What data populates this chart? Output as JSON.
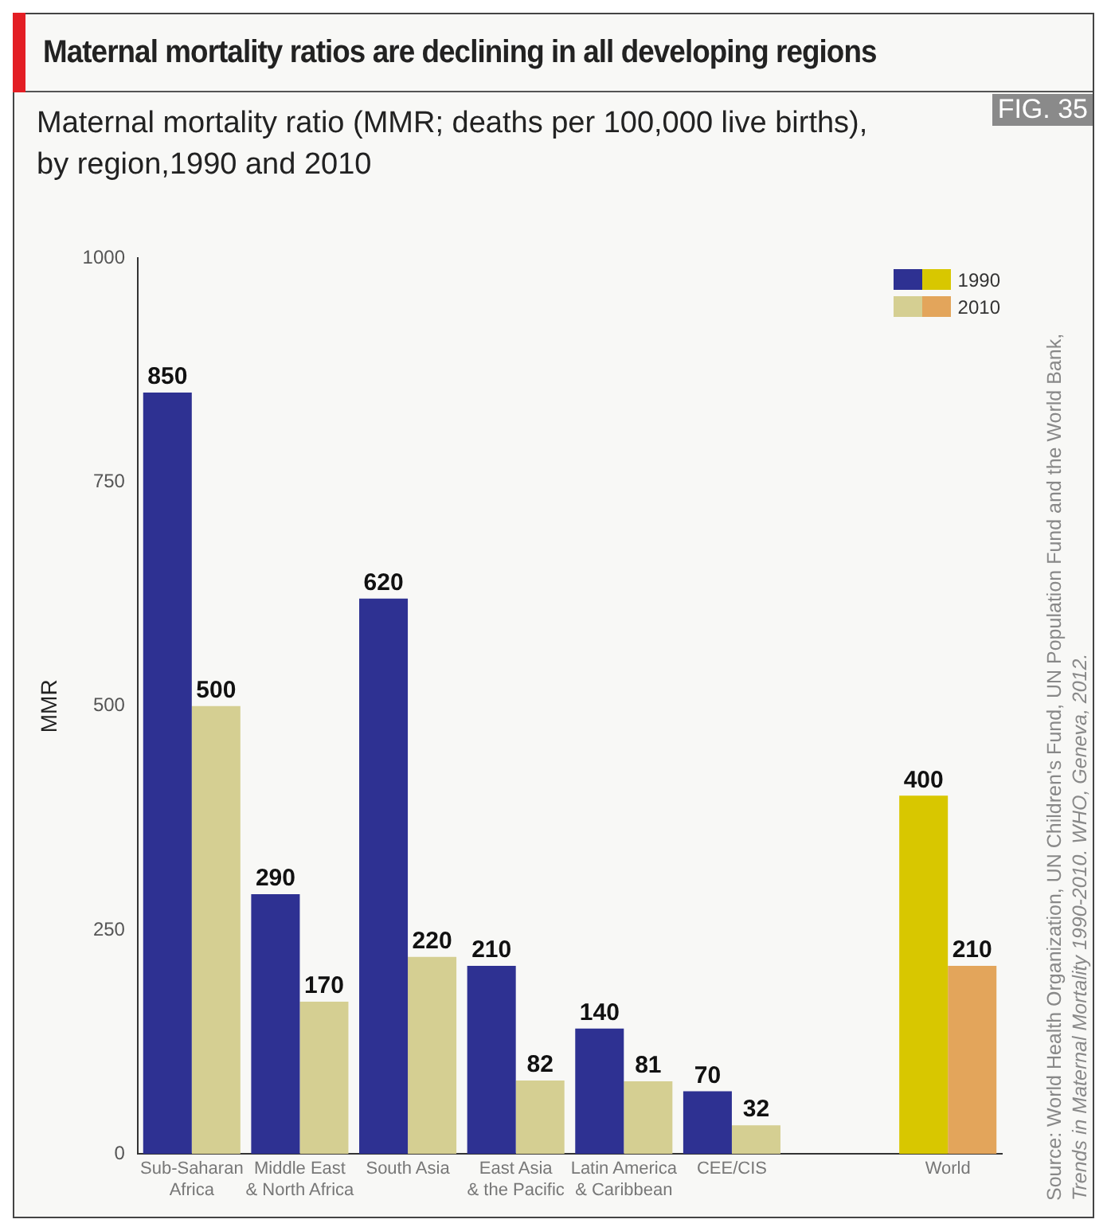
{
  "chart_data": {
    "type": "bar",
    "title": "Maternal mortality ratios are declining in all developing regions",
    "subtitle": "Maternal mortality ratio (MMR; deaths per 100,000 live births), by region,1990 and 2010",
    "ylabel": "MMR",
    "categories": [
      "Sub-Saharan\nAfrica",
      "Middle East\n& North Africa",
      "South Asia",
      "East Asia\n& the Pacific",
      "Latin America\n& Caribbean",
      "CEE/CIS",
      null,
      "World"
    ],
    "series": [
      {
        "name": "1990",
        "colors": [
          "#2e3192",
          "#2e3192",
          "#2e3192",
          "#2e3192",
          "#2e3192",
          "#2e3192",
          "#2e3192",
          "#d8c700"
        ],
        "values": [
          850,
          290,
          620,
          210,
          140,
          70,
          null,
          400
        ]
      },
      {
        "name": "2010",
        "colors": [
          "#d5cf92",
          "#d5cf92",
          "#d5cf92",
          "#d5cf92",
          "#d5cf92",
          "#d5cf92",
          "#d5cf92",
          "#e3a55b"
        ],
        "values": [
          500,
          170,
          220,
          82,
          81,
          32,
          null,
          210
        ]
      }
    ],
    "ylim": [
      0,
      1000
    ],
    "yticks": [
      0,
      250,
      500,
      750,
      1000
    ],
    "data_labels": true,
    "legend": "top right",
    "annotations": [
      "FIG. 35",
      "Source: World  Health Organization, UN Children's Fund, UN Population Fund and the World Bank,",
      "Trends in Maternal Mortality 1990-2010. WHO, Geneva, 2012."
    ]
  }
}
